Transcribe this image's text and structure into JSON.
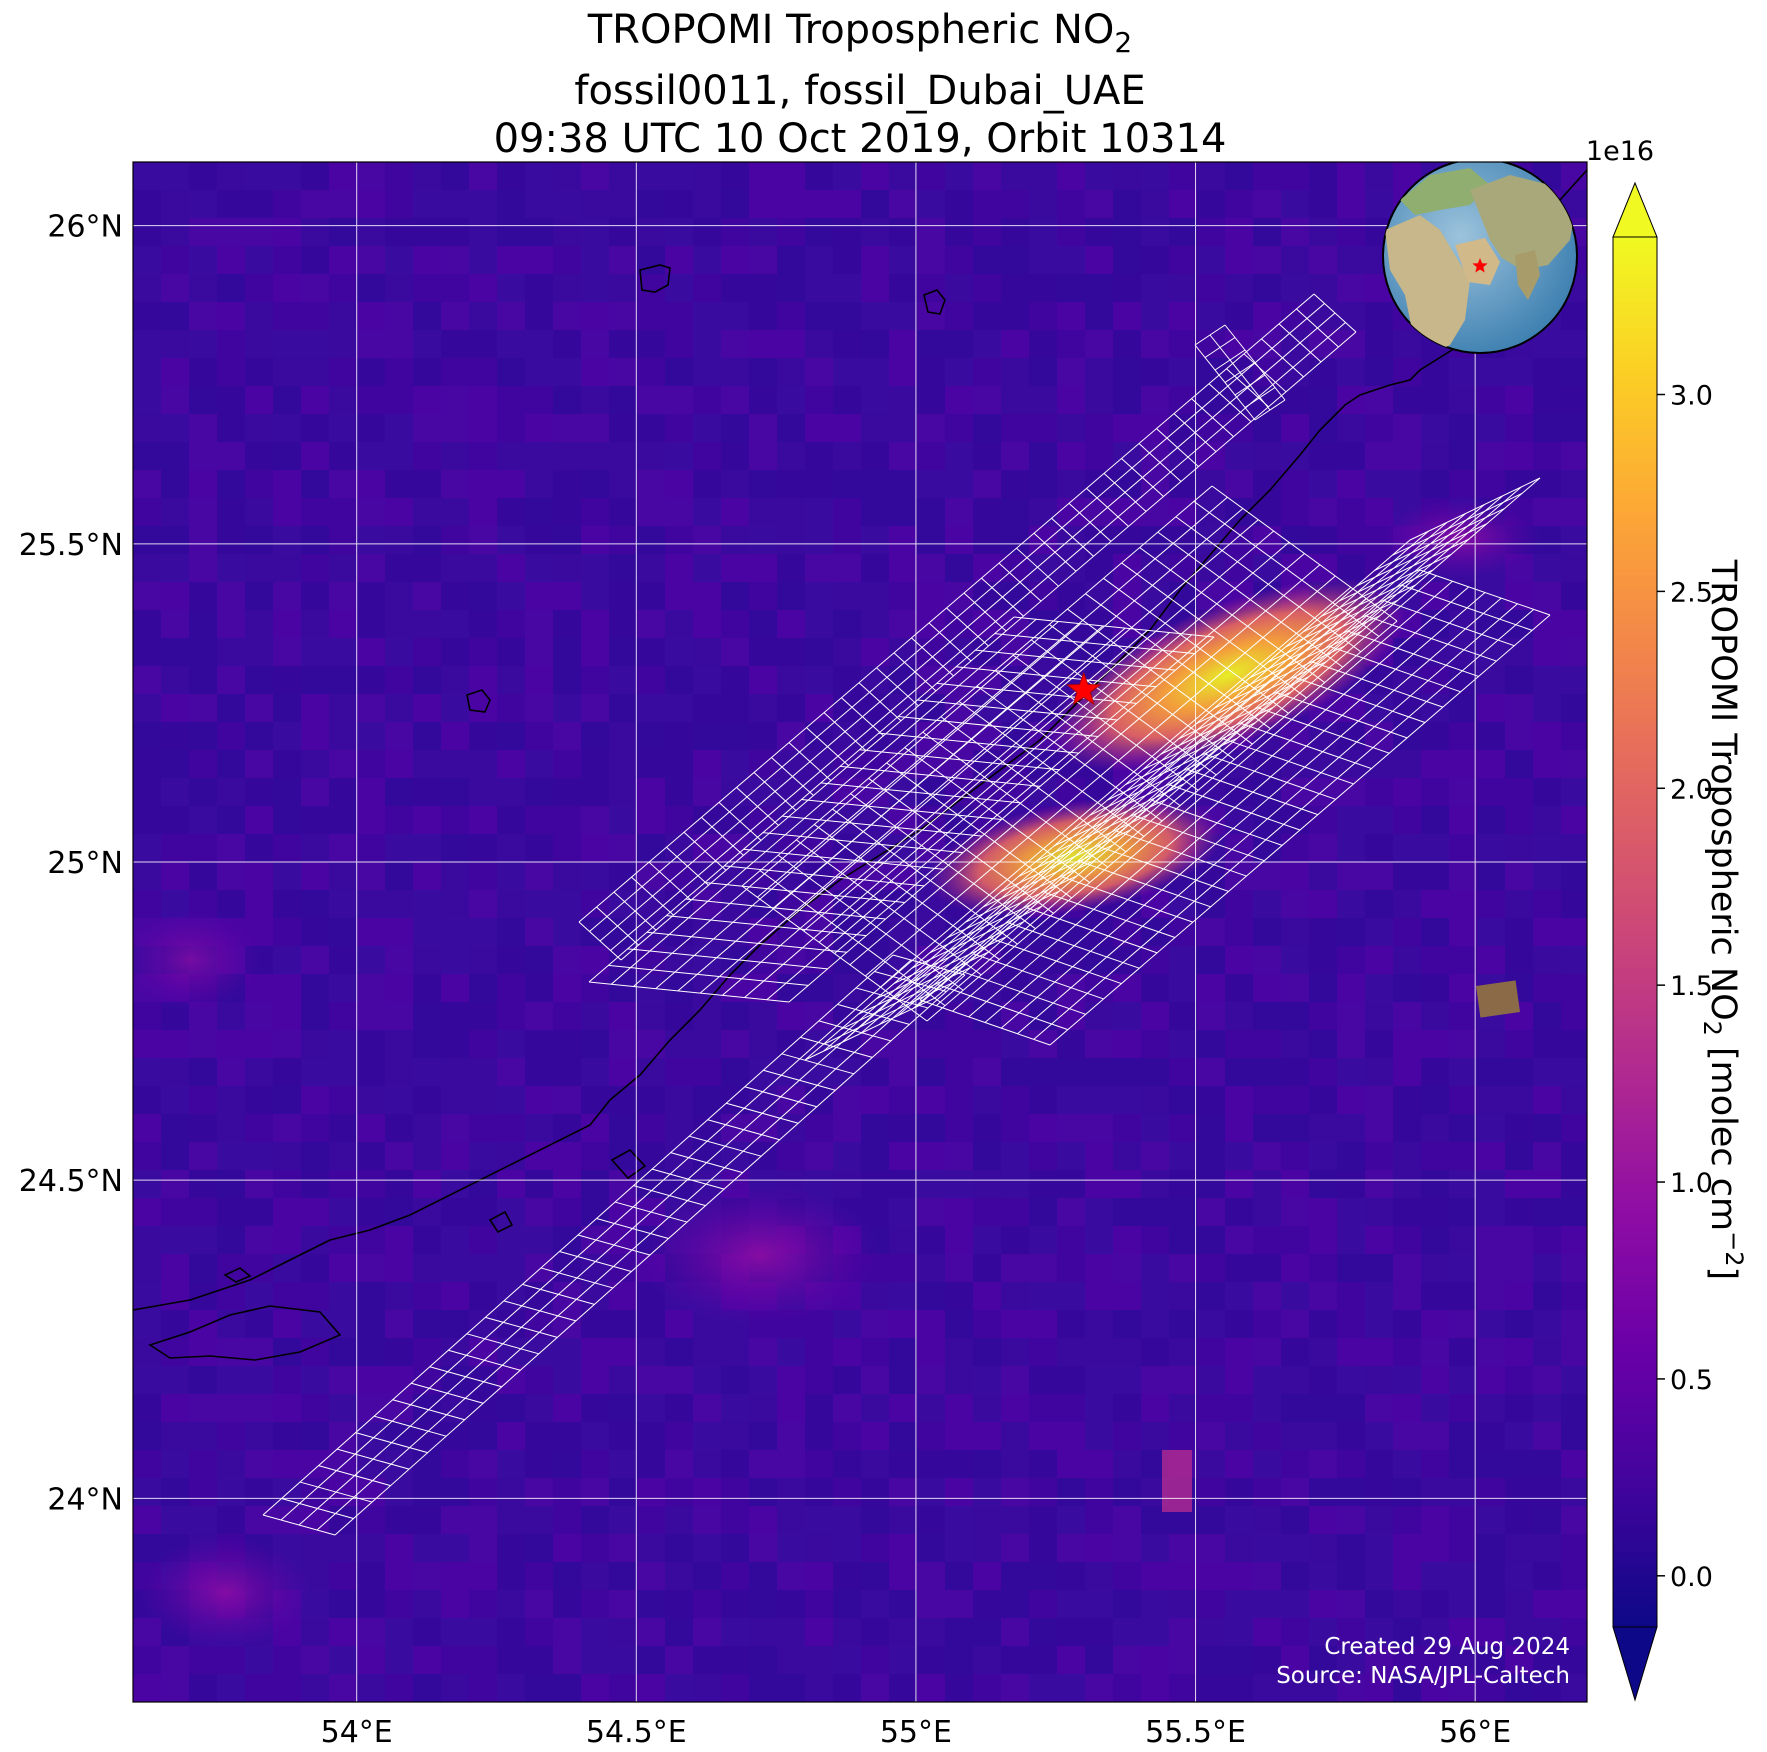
{
  "title": {
    "line1_prefix": "TROPOMI Tropospheric NO",
    "line1_sub": "2",
    "line2": "fossil0011, fossil_Dubai_UAE",
    "line3": "09:38 UTC 10 Oct 2019, Orbit 10314"
  },
  "map": {
    "lon_ticks": [
      "54°E",
      "54.5°E",
      "55°E",
      "55.5°E",
      "56°E"
    ],
    "lat_ticks": [
      "26°N",
      "25.5°N",
      "25°N",
      "24.5°N",
      "24°N"
    ],
    "lon_values": [
      54.0,
      54.5,
      55.0,
      55.5,
      56.0
    ],
    "lat_values": [
      26.0,
      25.5,
      25.0,
      24.5,
      24.0
    ],
    "lon_range": [
      53.6,
      56.2
    ],
    "lat_range": [
      23.68,
      26.1
    ],
    "grid": true,
    "target_marker": {
      "name": "fossil_Dubai_UAE",
      "lon": 55.3,
      "lat": 25.27,
      "color": "#ff0000"
    },
    "inset": "globe-locator",
    "background_color": "#3b0a9e",
    "footer_line1": "Created 29 Aug 2024",
    "footer_line2": "Source: NASA/JPL-Caltech"
  },
  "colorbar": {
    "label_prefix": "TROPOMI Tropospheric NO",
    "label_sub": "2",
    "label_units": " [molec cm",
    "label_sup": "−2",
    "label_end": "]",
    "multiplier": "1e16",
    "ticks": [
      "0.0",
      "0.5",
      "1.0",
      "1.5",
      "2.0",
      "2.5",
      "3.0"
    ],
    "tick_values": [
      0.0,
      0.5,
      1.0,
      1.5,
      2.0,
      2.5,
      3.0
    ],
    "range": [
      -0.13,
      3.4
    ],
    "extend": "both",
    "colormap": "plasma"
  }
}
